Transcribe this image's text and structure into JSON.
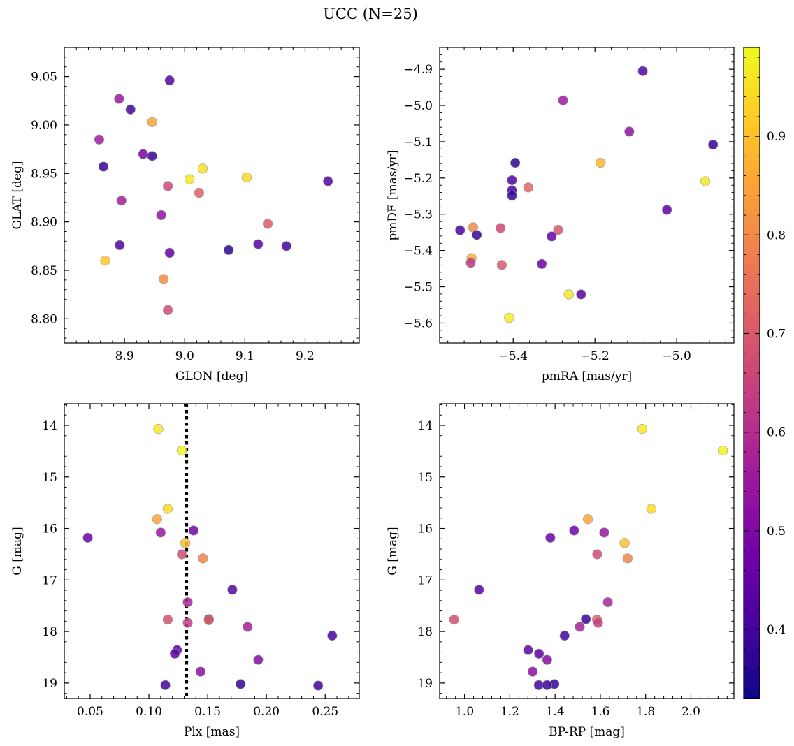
{
  "figure": {
    "title": "UCC (N=25)"
  },
  "colorbar": {
    "range": [
      0.33,
      0.99
    ],
    "ticks": [
      0.4,
      0.5,
      0.6,
      0.7,
      0.8,
      0.9
    ],
    "tick_labels": [
      "0.4",
      "0.5",
      "0.6",
      "0.7",
      "0.8",
      "0.9"
    ],
    "colormap": "plasma"
  },
  "colormap_stops": [
    "#0d0887",
    "#46039f",
    "#7201a8",
    "#9c179e",
    "#bd3786",
    "#d8576b",
    "#ed7953",
    "#fb9f3a",
    "#fdca26",
    "#f0f921"
  ],
  "chart_data": [
    {
      "id": "glon_glat",
      "type": "scatter",
      "xlabel": "GLON [deg]",
      "ylabel": "GLAT [deg]",
      "xlim": [
        8.8,
        9.29
      ],
      "ylim": [
        8.775,
        9.08
      ],
      "y_inverted": false,
      "xticks": [
        8.9,
        9.0,
        9.1,
        9.2
      ],
      "xtick_labels": [
        "8.9",
        "9.0",
        "9.1",
        "9.2"
      ],
      "yticks": [
        8.8,
        8.85,
        8.9,
        8.95,
        9.0,
        9.05
      ],
      "ytick_labels": [
        "8.80",
        "8.85",
        "8.90",
        "8.95",
        "9.00",
        "9.05"
      ],
      "vline": null,
      "points": [
        {
          "x": 8.975,
          "y": 9.046,
          "c": 0.42
        },
        {
          "x": 8.891,
          "y": 9.027,
          "c": 0.55
        },
        {
          "x": 8.91,
          "y": 9.016,
          "c": 0.4
        },
        {
          "x": 8.946,
          "y": 9.003,
          "c": 0.85
        },
        {
          "x": 8.858,
          "y": 8.985,
          "c": 0.56
        },
        {
          "x": 8.931,
          "y": 8.97,
          "c": 0.48
        },
        {
          "x": 8.946,
          "y": 8.968,
          "c": 0.38
        },
        {
          "x": 8.865,
          "y": 8.957,
          "c": 0.38
        },
        {
          "x": 9.03,
          "y": 8.955,
          "c": 0.95
        },
        {
          "x": 9.103,
          "y": 8.946,
          "c": 0.94
        },
        {
          "x": 9.008,
          "y": 8.944,
          "c": 0.96
        },
        {
          "x": 9.238,
          "y": 8.942,
          "c": 0.42
        },
        {
          "x": 8.972,
          "y": 8.937,
          "c": 0.66
        },
        {
          "x": 9.024,
          "y": 8.93,
          "c": 0.72
        },
        {
          "x": 8.895,
          "y": 8.922,
          "c": 0.57
        },
        {
          "x": 8.961,
          "y": 8.907,
          "c": 0.53
        },
        {
          "x": 9.138,
          "y": 8.898,
          "c": 0.7
        },
        {
          "x": 8.892,
          "y": 8.876,
          "c": 0.42
        },
        {
          "x": 9.122,
          "y": 8.877,
          "c": 0.43
        },
        {
          "x": 9.169,
          "y": 8.875,
          "c": 0.4
        },
        {
          "x": 9.073,
          "y": 8.871,
          "c": 0.37
        },
        {
          "x": 8.975,
          "y": 8.868,
          "c": 0.46
        },
        {
          "x": 8.868,
          "y": 8.86,
          "c": 0.91
        },
        {
          "x": 8.965,
          "y": 8.841,
          "c": 0.8
        },
        {
          "x": 8.972,
          "y": 8.809,
          "c": 0.67
        }
      ]
    },
    {
      "id": "pm",
      "type": "scatter",
      "xlabel": "pmRA [mas/yr]",
      "ylabel": "pmDE [mas/yr]",
      "xlim": [
        -5.58,
        -4.86
      ],
      "ylim": [
        -5.655,
        -4.84
      ],
      "y_inverted": false,
      "xticks": [
        -5.4,
        -5.2,
        -5.0
      ],
      "xtick_labels": [
        "−5.4",
        "−5.2",
        "−5.0"
      ],
      "yticks": [
        -5.6,
        -5.5,
        -5.4,
        -5.3,
        -5.2,
        -5.1,
        -5.0,
        -4.9
      ],
      "ytick_labels": [
        "−5.6",
        "−5.5",
        "−5.4",
        "−5.3",
        "−5.2",
        "−5.1",
        "−5.0",
        "−4.9"
      ],
      "vline": null,
      "points": [
        {
          "x": -5.083,
          "y": -4.905,
          "c": 0.42
        },
        {
          "x": -5.278,
          "y": -4.986,
          "c": 0.55
        },
        {
          "x": -5.116,
          "y": -5.072,
          "c": 0.53
        },
        {
          "x": -4.911,
          "y": -5.108,
          "c": 0.38
        },
        {
          "x": -5.395,
          "y": -5.158,
          "c": 0.37
        },
        {
          "x": -5.186,
          "y": -5.158,
          "c": 0.88
        },
        {
          "x": -5.403,
          "y": -5.206,
          "c": 0.42
        },
        {
          "x": -4.93,
          "y": -5.209,
          "c": 0.96
        },
        {
          "x": -5.363,
          "y": -5.226,
          "c": 0.73
        },
        {
          "x": -5.403,
          "y": -5.234,
          "c": 0.4
        },
        {
          "x": -5.403,
          "y": -5.249,
          "c": 0.38
        },
        {
          "x": -5.024,
          "y": -5.288,
          "c": 0.44
        },
        {
          "x": -5.498,
          "y": -5.336,
          "c": 0.8
        },
        {
          "x": -5.431,
          "y": -5.338,
          "c": 0.66
        },
        {
          "x": -5.29,
          "y": -5.343,
          "c": 0.69
        },
        {
          "x": -5.53,
          "y": -5.344,
          "c": 0.41
        },
        {
          "x": -5.489,
          "y": -5.357,
          "c": 0.39
        },
        {
          "x": -5.306,
          "y": -5.361,
          "c": 0.45
        },
        {
          "x": -5.502,
          "y": -5.421,
          "c": 0.86
        },
        {
          "x": -5.504,
          "y": -5.434,
          "c": 0.62
        },
        {
          "x": -5.428,
          "y": -5.44,
          "c": 0.7
        },
        {
          "x": -5.33,
          "y": -5.437,
          "c": 0.46
        },
        {
          "x": -5.264,
          "y": -5.521,
          "c": 0.96
        },
        {
          "x": -5.234,
          "y": -5.521,
          "c": 0.44
        },
        {
          "x": -5.41,
          "y": -5.586,
          "c": 0.97
        }
      ]
    },
    {
      "id": "plx_g",
      "type": "scatter",
      "xlabel": "Plx [mas]",
      "ylabel": "G [mag]",
      "xlim": [
        0.028,
        0.279
      ],
      "ylim": [
        13.58,
        19.3
      ],
      "y_inverted": true,
      "xticks": [
        0.05,
        0.1,
        0.15,
        0.2,
        0.25
      ],
      "xtick_labels": [
        "0.05",
        "0.10",
        "0.15",
        "0.20",
        "0.25"
      ],
      "yticks": [
        14,
        15,
        16,
        17,
        18,
        19
      ],
      "ytick_labels": [
        "14",
        "15",
        "16",
        "17",
        "18",
        "19"
      ],
      "vline": 0.132,
      "points": [
        {
          "x": 0.108,
          "y": 14.07,
          "c": 0.96
        },
        {
          "x": 0.128,
          "y": 14.49,
          "c": 0.98
        },
        {
          "x": 0.116,
          "y": 15.62,
          "c": 0.94
        },
        {
          "x": 0.107,
          "y": 15.82,
          "c": 0.85
        },
        {
          "x": 0.138,
          "y": 16.04,
          "c": 0.48
        },
        {
          "x": 0.11,
          "y": 16.08,
          "c": 0.54
        },
        {
          "x": 0.048,
          "y": 16.18,
          "c": 0.46
        },
        {
          "x": 0.131,
          "y": 16.28,
          "c": 0.9
        },
        {
          "x": 0.128,
          "y": 16.5,
          "c": 0.67
        },
        {
          "x": 0.146,
          "y": 16.58,
          "c": 0.79
        },
        {
          "x": 0.171,
          "y": 17.19,
          "c": 0.43
        },
        {
          "x": 0.133,
          "y": 17.43,
          "c": 0.58
        },
        {
          "x": 0.151,
          "y": 17.76,
          "c": 0.39
        },
        {
          "x": 0.151,
          "y": 17.78,
          "c": 0.72
        },
        {
          "x": 0.116,
          "y": 17.77,
          "c": 0.68
        },
        {
          "x": 0.133,
          "y": 17.83,
          "c": 0.64
        },
        {
          "x": 0.184,
          "y": 17.91,
          "c": 0.57
        },
        {
          "x": 0.256,
          "y": 18.08,
          "c": 0.4
        },
        {
          "x": 0.124,
          "y": 18.36,
          "c": 0.43
        },
        {
          "x": 0.122,
          "y": 18.43,
          "c": 0.44
        },
        {
          "x": 0.193,
          "y": 18.55,
          "c": 0.51
        },
        {
          "x": 0.144,
          "y": 18.78,
          "c": 0.52
        },
        {
          "x": 0.178,
          "y": 19.02,
          "c": 0.38
        },
        {
          "x": 0.114,
          "y": 19.04,
          "c": 0.4
        },
        {
          "x": 0.244,
          "y": 19.05,
          "c": 0.39
        }
      ]
    },
    {
      "id": "bprp_g",
      "type": "scatter",
      "xlabel": "BP-RP [mag]",
      "ylabel": "G [mag]",
      "xlim": [
        0.89,
        2.19
      ],
      "ylim": [
        13.58,
        19.3
      ],
      "y_inverted": true,
      "xticks": [
        1.0,
        1.2,
        1.4,
        1.6,
        1.8,
        2.0
      ],
      "xtick_labels": [
        "1.0",
        "1.2",
        "1.4",
        "1.6",
        "1.8",
        "2.0"
      ],
      "yticks": [
        14,
        15,
        16,
        17,
        18,
        19
      ],
      "ytick_labels": [
        "14",
        "15",
        "16",
        "17",
        "18",
        "19"
      ],
      "vline": null,
      "points": [
        {
          "x": 1.785,
          "y": 14.07,
          "c": 0.96
        },
        {
          "x": 2.141,
          "y": 14.49,
          "c": 0.98
        },
        {
          "x": 1.825,
          "y": 15.62,
          "c": 0.94
        },
        {
          "x": 1.545,
          "y": 15.82,
          "c": 0.85
        },
        {
          "x": 1.484,
          "y": 16.04,
          "c": 0.48
        },
        {
          "x": 1.617,
          "y": 16.08,
          "c": 0.54
        },
        {
          "x": 1.379,
          "y": 16.18,
          "c": 0.46
        },
        {
          "x": 1.707,
          "y": 16.28,
          "c": 0.9
        },
        {
          "x": 1.586,
          "y": 16.5,
          "c": 0.67
        },
        {
          "x": 1.72,
          "y": 16.58,
          "c": 0.79
        },
        {
          "x": 1.064,
          "y": 17.19,
          "c": 0.43
        },
        {
          "x": 1.633,
          "y": 17.43,
          "c": 0.58
        },
        {
          "x": 1.536,
          "y": 17.76,
          "c": 0.39
        },
        {
          "x": 1.585,
          "y": 17.77,
          "c": 0.72
        },
        {
          "x": 0.954,
          "y": 17.77,
          "c": 0.68
        },
        {
          "x": 1.59,
          "y": 17.83,
          "c": 0.64
        },
        {
          "x": 1.509,
          "y": 17.91,
          "c": 0.57
        },
        {
          "x": 1.442,
          "y": 18.08,
          "c": 0.4
        },
        {
          "x": 1.281,
          "y": 18.36,
          "c": 0.43
        },
        {
          "x": 1.329,
          "y": 18.43,
          "c": 0.44
        },
        {
          "x": 1.365,
          "y": 18.55,
          "c": 0.51
        },
        {
          "x": 1.301,
          "y": 18.78,
          "c": 0.52
        },
        {
          "x": 1.397,
          "y": 19.02,
          "c": 0.38
        },
        {
          "x": 1.328,
          "y": 19.04,
          "c": 0.4
        },
        {
          "x": 1.365,
          "y": 19.04,
          "c": 0.39
        }
      ]
    }
  ]
}
